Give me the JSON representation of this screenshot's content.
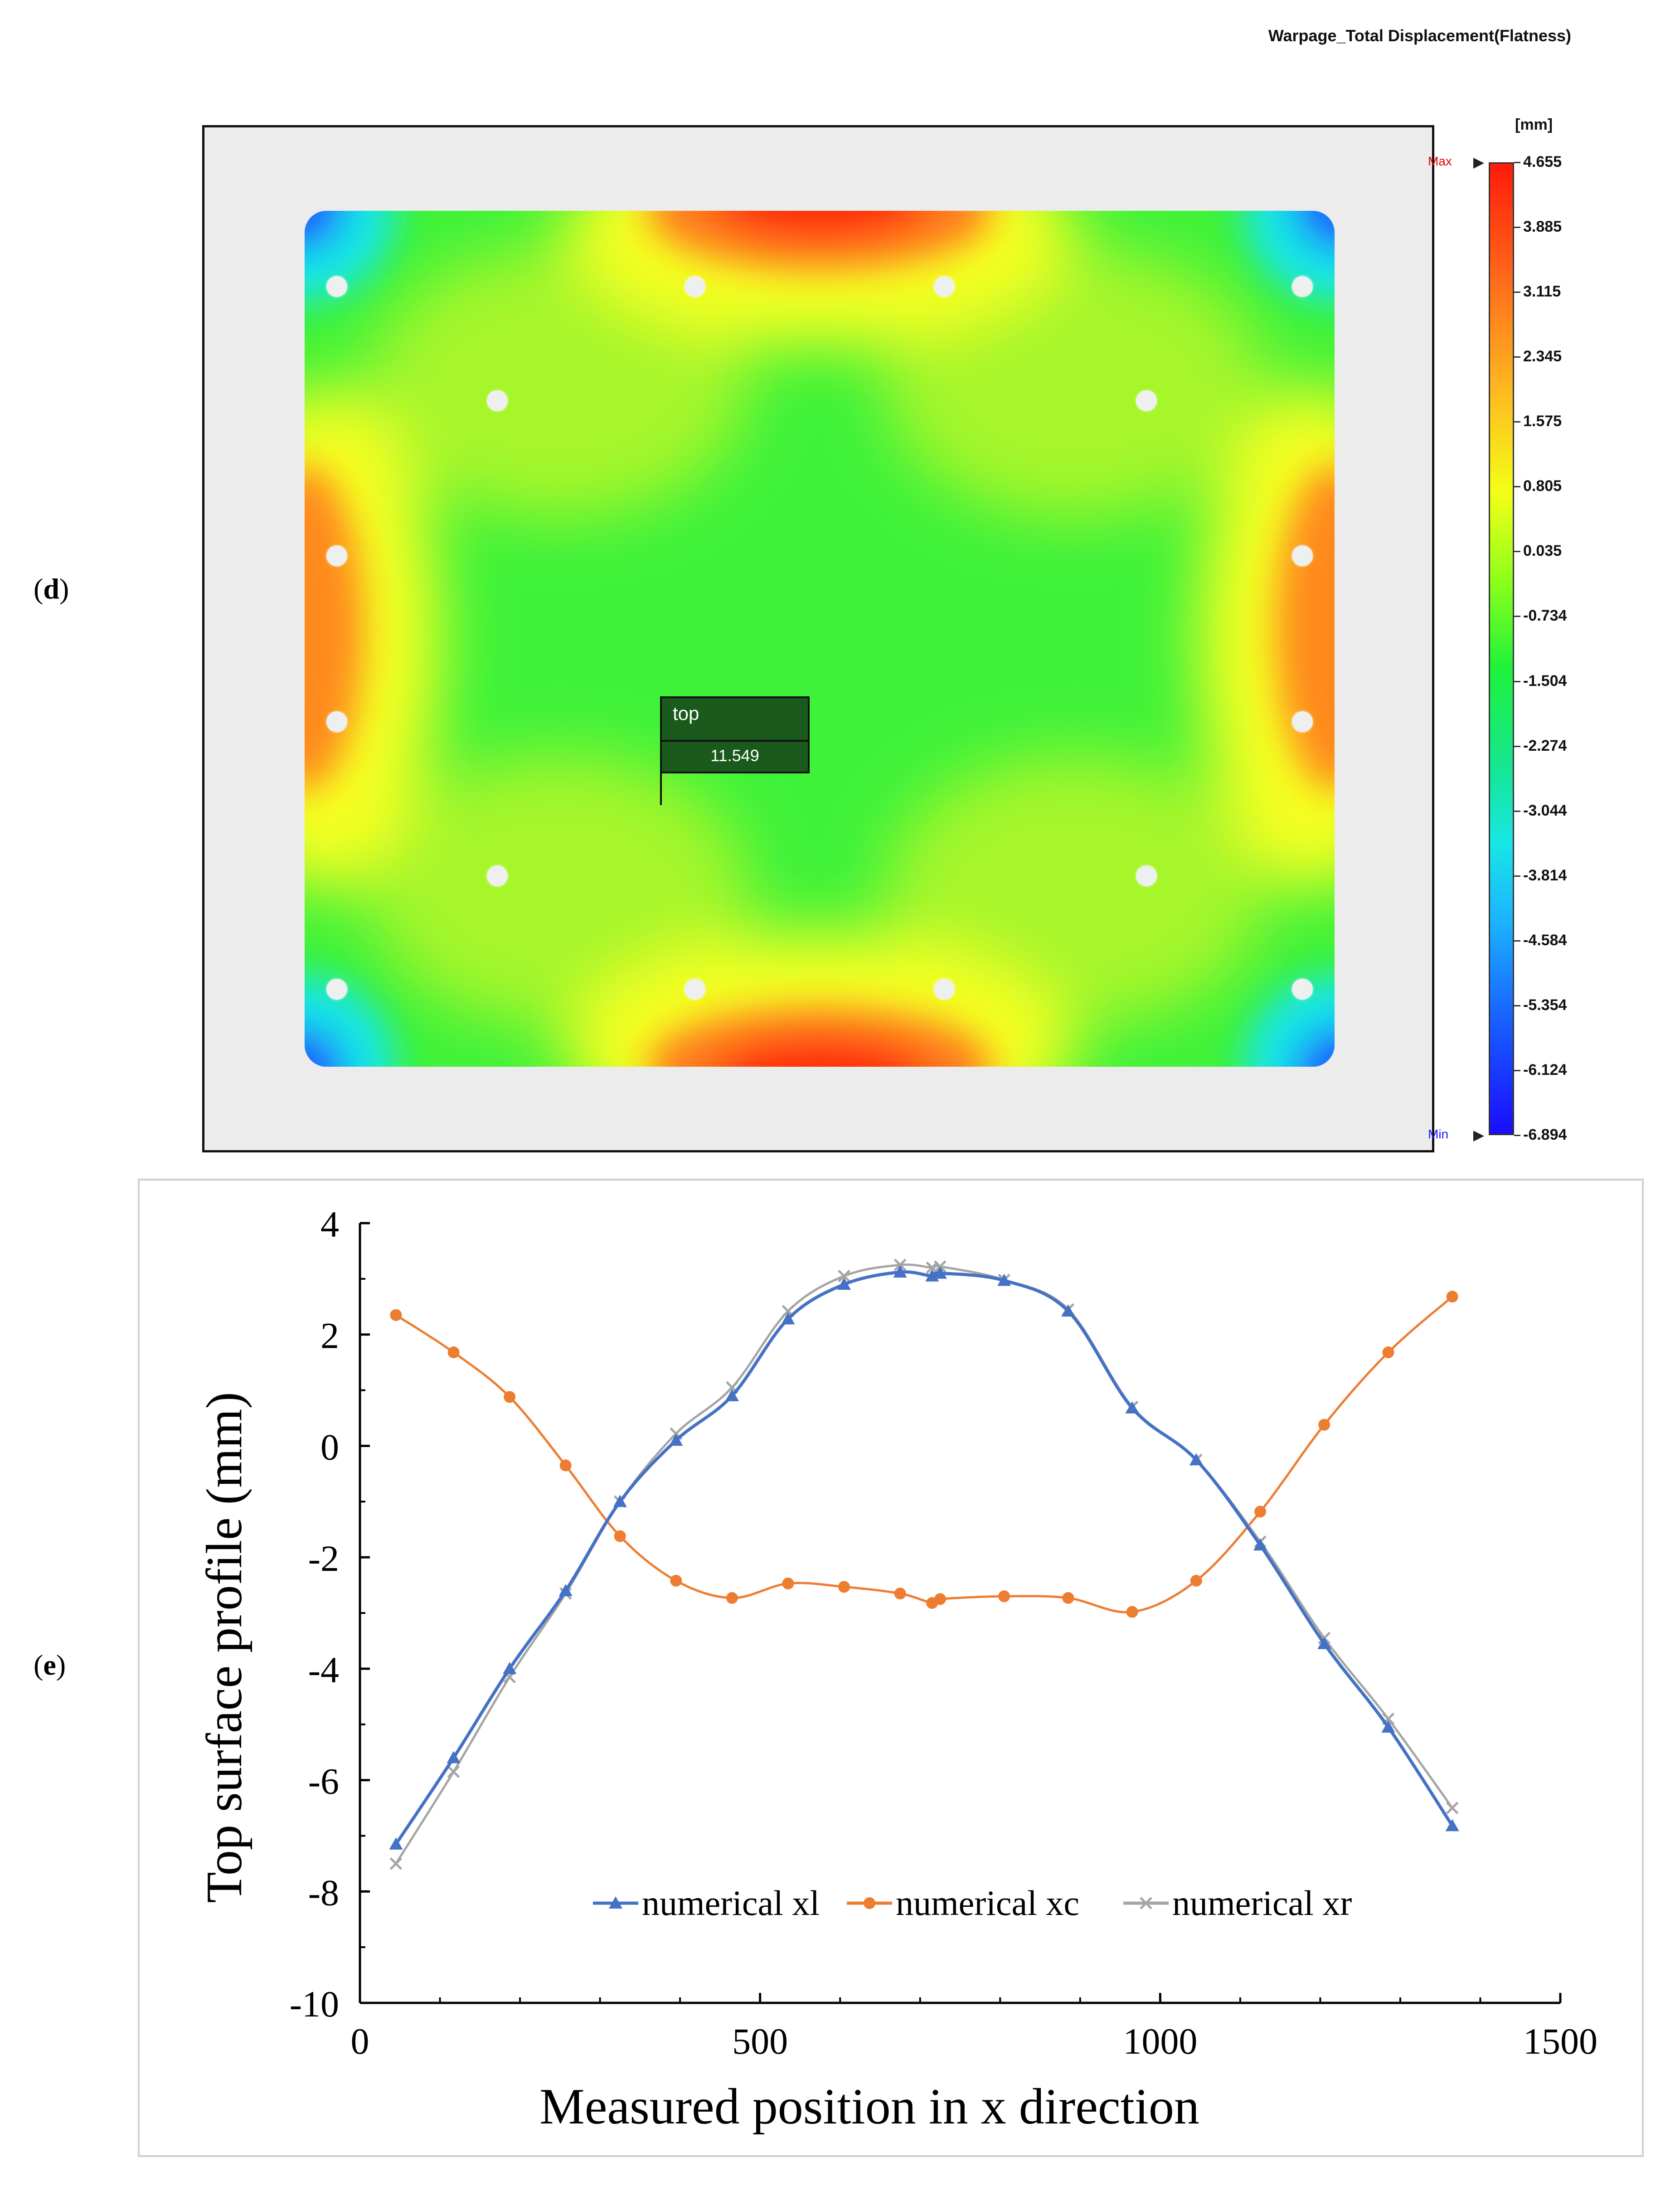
{
  "panel_d": {
    "label_open": "(",
    "label_letter": "d",
    "label_close": ")",
    "title": "Warpage_Total Displacement(Flatness)",
    "unit": "[mm]",
    "max_label": "Max",
    "min_label": "Min",
    "probe": {
      "name": "top",
      "value": "11.549"
    },
    "colorbar_values": [
      "4.655",
      "3.885",
      "3.115",
      "2.345",
      "1.575",
      "0.805",
      "0.035",
      "-0.734",
      "-1.504",
      "-2.274",
      "-3.044",
      "-3.814",
      "-4.584",
      "-5.354",
      "-6.124",
      "-6.894"
    ],
    "colors": {
      "max_red": "#ff1a0a",
      "yellow": "#f4ff18",
      "green": "#1ef23a",
      "cyan": "#18e6e6",
      "min_blue": "#1a0cff",
      "probe_bg": "#1a5a1d"
    }
  },
  "panel_e": {
    "label_open": "(",
    "label_letter": "e",
    "label_close": ")"
  },
  "chart_data": {
    "type": "line",
    "title": "",
    "xlabel": "Measured position in x direction",
    "ylabel": "Top surface profile (mm)",
    "xlim": [
      0,
      1500
    ],
    "ylim": [
      -10,
      4
    ],
    "xticks": [
      "0",
      "500",
      "1000",
      "1500"
    ],
    "yticks": [
      "4",
      "2",
      "0",
      "-2",
      "-4",
      "-6",
      "-8",
      "-10"
    ],
    "legend_position": "bottom-center",
    "series": [
      {
        "name": "numerical xl",
        "color": "#4472c4",
        "marker": "triangle",
        "x": [
          45,
          117,
          187,
          257,
          325,
          395,
          465,
          535,
          605,
          675,
          715,
          725,
          805,
          885,
          965,
          1045,
          1125,
          1205,
          1285,
          1365
        ],
        "y": [
          -7.15,
          -5.6,
          -4.0,
          -2.6,
          -1.0,
          0.1,
          0.9,
          2.28,
          2.9,
          3.12,
          3.05,
          3.1,
          2.97,
          2.42,
          0.68,
          -0.25,
          -1.78,
          -3.55,
          -5.05,
          -6.82
        ]
      },
      {
        "name": "numerical xc",
        "color": "#ed7d31",
        "marker": "circle",
        "x": [
          45,
          117,
          187,
          257,
          325,
          395,
          465,
          535,
          605,
          675,
          715,
          725,
          805,
          885,
          965,
          1045,
          1125,
          1205,
          1285,
          1365
        ],
        "y": [
          2.35,
          1.68,
          0.88,
          -0.35,
          -1.62,
          -2.42,
          -2.73,
          -2.47,
          -2.53,
          -2.65,
          -2.82,
          -2.75,
          -2.7,
          -2.73,
          -2.98,
          -2.42,
          -1.18,
          0.38,
          1.68,
          2.68
        ]
      },
      {
        "name": "numerical xr",
        "color": "#a5a5a5",
        "marker": "x",
        "x": [
          45,
          117,
          187,
          257,
          325,
          395,
          465,
          535,
          605,
          675,
          715,
          725,
          805,
          885,
          965,
          1045,
          1125,
          1205,
          1285,
          1365
        ],
        "y": [
          -7.5,
          -5.85,
          -4.15,
          -2.65,
          -1.0,
          0.22,
          1.05,
          2.42,
          3.05,
          3.25,
          3.2,
          3.22,
          2.98,
          2.45,
          0.7,
          -0.25,
          -1.72,
          -3.45,
          -4.9,
          -6.5
        ]
      }
    ]
  }
}
